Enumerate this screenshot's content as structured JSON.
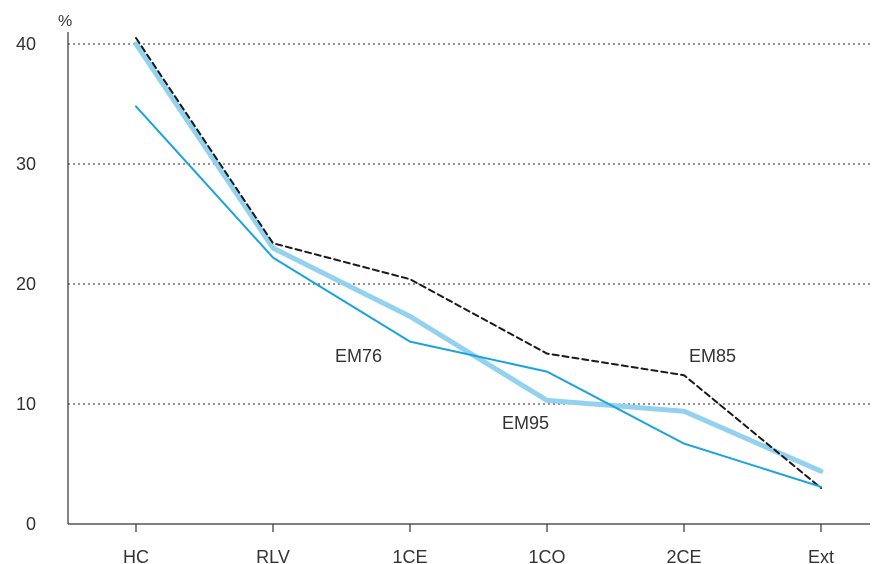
{
  "chart_data": {
    "type": "line",
    "title": "",
    "xlabel": "",
    "ylabel": "%",
    "categories": [
      "HC",
      "RLV",
      "1CE",
      "1CO",
      "2CE",
      "Ext"
    ],
    "ylim": [
      0,
      40
    ],
    "yticks": [
      0,
      10,
      20,
      30,
      40
    ],
    "grid": true,
    "series": [
      {
        "name": "EM76",
        "values": [
          34.8,
          22.2,
          15.2,
          12.7,
          6.7,
          3.1
        ],
        "color": "#1aa3dd",
        "style": "solid-thin"
      },
      {
        "name": "EM95",
        "values": [
          40.0,
          23.0,
          17.3,
          10.3,
          9.4,
          4.4
        ],
        "color": "#93d2ee",
        "style": "solid-thick"
      },
      {
        "name": "EM85",
        "values": [
          40.5,
          23.4,
          20.4,
          14.2,
          12.4,
          3.0
        ],
        "color": "#1a1a1a",
        "style": "dashed"
      }
    ]
  }
}
